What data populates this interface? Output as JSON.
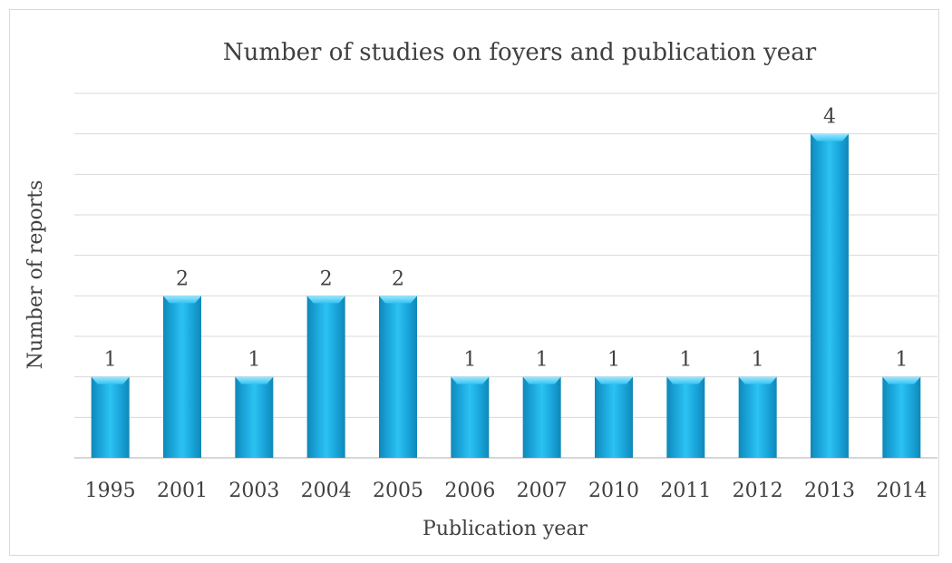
{
  "chart_data": {
    "type": "bar",
    "title": "Number of studies on foyers and publication year",
    "xlabel": "Publication year",
    "ylabel": "Number of reports",
    "categories": [
      "1995",
      "2001",
      "2003",
      "2004",
      "2005",
      "2006",
      "2007",
      "2010",
      "2011",
      "2012",
      "2013",
      "2014"
    ],
    "values": [
      1,
      2,
      1,
      2,
      2,
      1,
      1,
      1,
      1,
      1,
      4,
      1
    ],
    "ylim": [
      0,
      4.5
    ],
    "gridlines": [
      0.5,
      1,
      1.5,
      2,
      2.5,
      3,
      3.5,
      4,
      4.5
    ],
    "grid": true,
    "data_labels": true,
    "bar_color": "#1ab3e6"
  }
}
